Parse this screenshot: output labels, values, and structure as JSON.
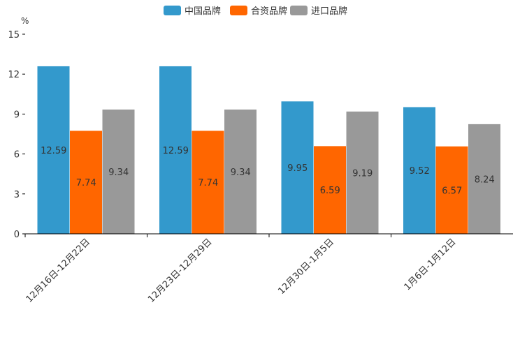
{
  "chart_data": {
    "type": "bar",
    "title": "",
    "xlabel": "",
    "ylabel": "%",
    "ylim": [
      0,
      15
    ],
    "yticks": [
      0,
      3,
      6,
      9,
      12,
      15
    ],
    "categories": [
      "12月16日-12月22日",
      "12月23日-12月29日",
      "12月30日-1月5日",
      "1月6日-1月12日"
    ],
    "series": [
      {
        "name": "中国品牌",
        "color": "#3399cc",
        "values": [
          12.59,
          12.59,
          9.95,
          9.52
        ]
      },
      {
        "name": "合资品牌",
        "color": "#ff6600",
        "values": [
          7.74,
          7.74,
          6.59,
          6.57
        ]
      },
      {
        "name": "进口品牌",
        "color": "#999999",
        "values": [
          9.34,
          9.34,
          9.19,
          8.24
        ]
      }
    ],
    "legend_position": "top-center",
    "grid": false
  }
}
